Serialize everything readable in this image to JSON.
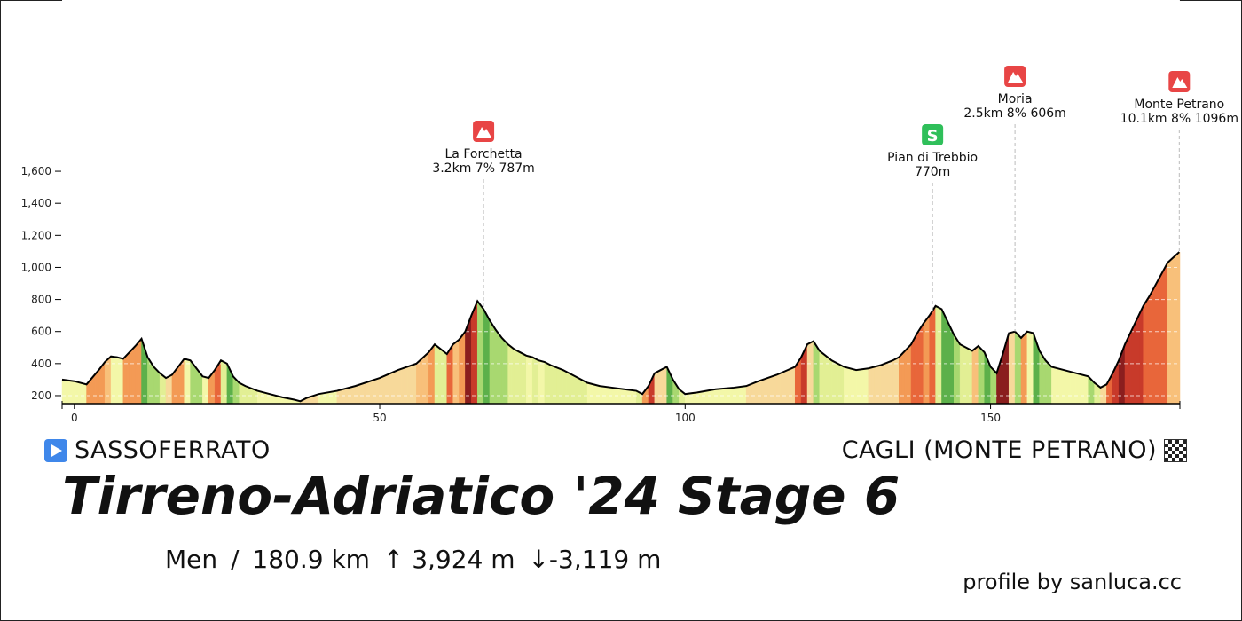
{
  "chart_data": {
    "type": "area",
    "title": "Tirreno-Adriatico '24 Stage 6",
    "xlabel": "",
    "ylabel": "",
    "xlim": [
      -2,
      181
    ],
    "ylim": [
      150,
      1700
    ],
    "x_ticks": [
      0,
      50,
      100,
      150
    ],
    "x_tick_labels": [
      "0",
      "50",
      "100",
      "150"
    ],
    "y_ticks": [
      200,
      400,
      600,
      800,
      1000,
      1200,
      1400,
      1600
    ],
    "y_tick_labels": [
      "200",
      "400",
      "600",
      "800",
      "1,000",
      "1,200",
      "1,400",
      "1,600"
    ],
    "grid": false,
    "profile": {
      "x": [
        -2,
        0,
        2,
        4,
        5,
        6,
        7,
        8,
        9,
        10,
        11,
        12,
        13,
        14,
        15,
        16,
        17,
        18,
        19,
        20,
        21,
        22,
        23,
        24,
        25,
        26,
        27,
        28,
        30,
        32,
        34,
        36,
        37,
        38,
        40,
        43,
        46,
        50,
        53,
        56,
        58,
        59,
        60,
        61,
        62,
        63,
        64,
        65,
        66,
        67,
        68,
        69,
        70,
        71,
        72,
        73,
        74,
        75,
        76,
        77,
        78,
        80,
        82,
        84,
        86,
        88,
        90,
        92,
        93,
        94,
        95,
        96,
        97,
        98,
        99,
        100,
        102,
        105,
        108,
        110,
        112,
        115,
        118,
        119,
        120,
        121,
        122,
        124,
        126,
        128,
        130,
        132,
        134,
        135,
        136,
        137,
        138,
        139,
        140,
        141,
        142,
        143,
        144,
        145,
        146,
        147,
        148,
        149,
        150,
        151,
        152,
        153,
        154,
        155,
        156,
        157,
        158,
        159,
        160,
        162,
        164,
        166,
        167,
        168,
        169,
        170,
        171,
        172,
        173,
        174,
        175,
        176,
        177,
        178,
        179,
        180.9
      ],
      "y": [
        300,
        290,
        270,
        360,
        410,
        445,
        440,
        430,
        470,
        510,
        555,
        440,
        380,
        340,
        310,
        330,
        380,
        430,
        420,
        370,
        320,
        310,
        360,
        420,
        400,
        320,
        280,
        260,
        230,
        210,
        190,
        175,
        165,
        185,
        210,
        230,
        260,
        310,
        360,
        400,
        470,
        520,
        490,
        460,
        520,
        550,
        600,
        700,
        790,
        740,
        670,
        610,
        560,
        520,
        490,
        470,
        450,
        440,
        420,
        410,
        390,
        360,
        320,
        280,
        260,
        250,
        240,
        230,
        210,
        260,
        340,
        360,
        380,
        300,
        240,
        210,
        220,
        240,
        250,
        260,
        290,
        330,
        380,
        440,
        520,
        540,
        480,
        420,
        380,
        360,
        370,
        390,
        420,
        440,
        480,
        520,
        590,
        650,
        700,
        760,
        740,
        660,
        580,
        520,
        500,
        480,
        510,
        470,
        380,
        340,
        460,
        590,
        600,
        560,
        600,
        590,
        480,
        420,
        380,
        360,
        340,
        320,
        280,
        250,
        270,
        340,
        420,
        520,
        600,
        680,
        760,
        820,
        890,
        960,
        1030,
        1096
      ]
    },
    "gradient_colors": [
      "#f3f7a8",
      "#e2ef94",
      "#a8d870",
      "#5cb04a",
      "#1f7a2e",
      "#f7d99a",
      "#f8c07a",
      "#f39a55",
      "#e8663a",
      "#c83a2a",
      "#8a1e1e"
    ],
    "markers": [
      {
        "name": "La Forchetta",
        "info": "3.2km 7% 787m",
        "type": "climb",
        "x": 67,
        "y": 787
      },
      {
        "name": "Pian di Trebbio",
        "info": "770m",
        "type": "sprint",
        "x": 140.5,
        "y": 770
      },
      {
        "name": "Moria",
        "info": "2.5km 8% 606m",
        "type": "climb",
        "x": 154.0,
        "y": 606
      },
      {
        "name": "Monte Petrano",
        "info": "10.1km 8% 1096m",
        "type": "climb",
        "x": 180.9,
        "y": 1096
      }
    ],
    "colors": {
      "climb": "#e84545",
      "sprint": "#2fbf5a",
      "line": "#000000",
      "dash": "#bbbbbb"
    }
  },
  "route": {
    "start": "SASSOFERRATO",
    "finish": "CAGLI (MONTE PETRANO)",
    "start_icon": "play-icon",
    "finish_icon": "checkered-flag-icon"
  },
  "title": "Tirreno-Adriatico '24 Stage 6",
  "stats": {
    "category": "Men",
    "separator": "/",
    "distance": "180.9 km",
    "ascent": "↑ 3,924 m",
    "descent": "↓-3,119 m"
  },
  "credit": "profile by sanluca.cc"
}
